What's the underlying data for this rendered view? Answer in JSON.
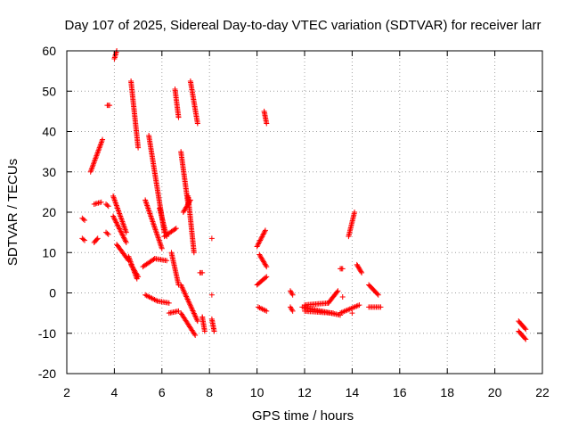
{
  "chart_data": {
    "type": "scatter",
    "title": "Day 107 of 2025, Sidereal Day-to-day VTEC variation (SDTVAR) for receiver larr",
    "xlabel": "GPS time / hours",
    "ylabel": "SDTVAR / TECUs",
    "xlim": [
      2,
      22
    ],
    "ylim": [
      -20,
      60
    ],
    "xticks": [
      "2",
      "4",
      "6",
      "8",
      "10",
      "12",
      "14",
      "16",
      "18",
      "20",
      "22"
    ],
    "yticks": [
      "-20",
      "-10",
      "0",
      "10",
      "20",
      "30",
      "40",
      "50",
      "60"
    ],
    "grid": true,
    "marker": "plus",
    "color": "#ff0000",
    "segments": [
      {
        "x": [
          2.65,
          2.75
        ],
        "y": [
          13.5,
          13.0
        ]
      },
      {
        "x": [
          2.65,
          2.75
        ],
        "y": [
          18.5,
          18.0
        ]
      },
      {
        "x": [
          3.15,
          3.3
        ],
        "y": [
          12.5,
          13.5
        ]
      },
      {
        "x": [
          3.15,
          3.45
        ],
        "y": [
          22.0,
          22.5
        ]
      },
      {
        "x": [
          3.0,
          3.5
        ],
        "y": [
          30.0,
          38.0
        ]
      },
      {
        "x": [
          3.7,
          3.8
        ],
        "y": [
          46.5,
          46.5
        ]
      },
      {
        "x": [
          3.65,
          3.75
        ],
        "y": [
          15.0,
          14.5
        ]
      },
      {
        "x": [
          3.65,
          3.75
        ],
        "y": [
          22.0,
          21.5
        ]
      },
      {
        "x": [
          4.0,
          4.1
        ],
        "y": [
          58.0,
          60.0
        ]
      },
      {
        "x": [
          3.95,
          4.5
        ],
        "y": [
          24.0,
          15.0
        ]
      },
      {
        "x": [
          3.95,
          4.5
        ],
        "y": [
          19.0,
          12.5
        ]
      },
      {
        "x": [
          4.1,
          4.6
        ],
        "y": [
          12.0,
          8.0
        ]
      },
      {
        "x": [
          4.6,
          4.95
        ],
        "y": [
          9.0,
          3.5
        ]
      },
      {
        "x": [
          4.7,
          5.0
        ],
        "y": [
          7.0,
          4.0
        ]
      },
      {
        "x": [
          4.7,
          5.0
        ],
        "y": [
          52.5,
          36.0
        ]
      },
      {
        "x": [
          5.2,
          5.7
        ],
        "y": [
          6.5,
          8.5
        ]
      },
      {
        "x": [
          5.7,
          6.2
        ],
        "y": [
          8.5,
          8.0
        ]
      },
      {
        "x": [
          5.3,
          5.8
        ],
        "y": [
          -0.5,
          -2.0
        ]
      },
      {
        "x": [
          5.8,
          6.3
        ],
        "y": [
          -2.0,
          -2.5
        ]
      },
      {
        "x": [
          5.3,
          6.0
        ],
        "y": [
          23.0,
          11.0
        ]
      },
      {
        "x": [
          5.45,
          6.1
        ],
        "y": [
          39.0,
          15.0
        ]
      },
      {
        "x": [
          5.9,
          6.2
        ],
        "y": [
          21.0,
          14.0
        ]
      },
      {
        "x": [
          6.1,
          6.6
        ],
        "y": [
          14.0,
          16.0
        ]
      },
      {
        "x": [
          6.3,
          6.7
        ],
        "y": [
          -5.0,
          -4.5
        ]
      },
      {
        "x": [
          6.4,
          6.7
        ],
        "y": [
          10.0,
          2.0
        ]
      },
      {
        "x": [
          6.55,
          6.7
        ],
        "y": [
          50.5,
          43.5
        ]
      },
      {
        "x": [
          6.8,
          7.5
        ],
        "y": [
          2.0,
          -7.0
        ]
      },
      {
        "x": [
          6.8,
          7.4
        ],
        "y": [
          -5.0,
          -10.5
        ]
      },
      {
        "x": [
          6.8,
          7.1
        ],
        "y": [
          35.0,
          22.0
        ]
      },
      {
        "x": [
          6.9,
          7.2
        ],
        "y": [
          20.0,
          23.0
        ]
      },
      {
        "x": [
          7.1,
          7.35
        ],
        "y": [
          24.0,
          10.0
        ]
      },
      {
        "x": [
          7.2,
          7.5
        ],
        "y": [
          52.5,
          42.0
        ]
      },
      {
        "x": [
          7.6,
          7.7
        ],
        "y": [
          5.0,
          5.0
        ]
      },
      {
        "x": [
          7.7,
          7.8
        ],
        "y": [
          -6.0,
          -9.5
        ]
      },
      {
        "x": [
          8.1,
          8.2
        ],
        "y": [
          -6.5,
          -9.5
        ]
      },
      {
        "x": [
          10.0,
          10.35
        ],
        "y": [
          11.5,
          15.5
        ]
      },
      {
        "x": [
          10.1,
          10.4
        ],
        "y": [
          9.5,
          6.5
        ]
      },
      {
        "x": [
          10.0,
          10.4
        ],
        "y": [
          2.0,
          4.0
        ]
      },
      {
        "x": [
          10.05,
          10.4
        ],
        "y": [
          -3.5,
          -4.5
        ]
      },
      {
        "x": [
          10.3,
          10.4
        ],
        "y": [
          45.0,
          42.0
        ]
      },
      {
        "x": [
          11.4,
          11.5
        ],
        "y": [
          0.5,
          -0.5
        ]
      },
      {
        "x": [
          11.4,
          11.5
        ],
        "y": [
          -3.5,
          -4.5
        ]
      },
      {
        "x": [
          11.9,
          13.5
        ],
        "y": [
          -3.5,
          -5.5
        ]
      },
      {
        "x": [
          12.0,
          13.0
        ],
        "y": [
          -3.0,
          -2.5
        ]
      },
      {
        "x": [
          12.0,
          13.2
        ],
        "y": [
          -4.5,
          -5.0
        ]
      },
      {
        "x": [
          13.0,
          13.4
        ],
        "y": [
          -2.5,
          0.5
        ]
      },
      {
        "x": [
          13.5,
          13.6
        ],
        "y": [
          6.0,
          6.0
        ]
      },
      {
        "x": [
          13.5,
          14.3
        ],
        "y": [
          -5.0,
          -3.0
        ]
      },
      {
        "x": [
          13.85,
          14.1
        ],
        "y": [
          14.0,
          20.0
        ]
      },
      {
        "x": [
          14.2,
          14.4
        ],
        "y": [
          7.0,
          5.0
        ]
      },
      {
        "x": [
          14.7,
          15.1
        ],
        "y": [
          2.0,
          -0.5
        ]
      },
      {
        "x": [
          14.7,
          15.2
        ],
        "y": [
          -3.5,
          -3.5
        ]
      },
      {
        "x": [
          21.0,
          21.3
        ],
        "y": [
          -7.0,
          -9.0
        ]
      },
      {
        "x": [
          21.0,
          21.3
        ],
        "y": [
          -9.5,
          -11.5
        ]
      }
    ],
    "isolated_points": [
      {
        "x": 8.1,
        "y": 13.5
      },
      {
        "x": 8.1,
        "y": -0.5
      },
      {
        "x": 7.7,
        "y": -6.0
      },
      {
        "x": 13.6,
        "y": -1.0
      },
      {
        "x": 14.0,
        "y": -5.0
      }
    ]
  }
}
